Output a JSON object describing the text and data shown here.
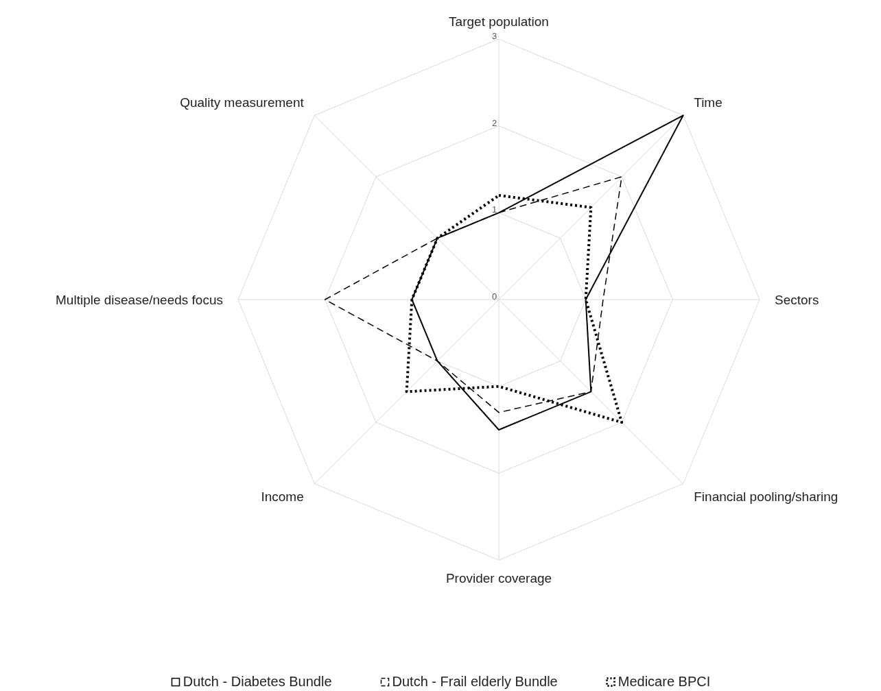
{
  "chart_data": {
    "type": "radar",
    "categories": [
      "Target population",
      "Time",
      "Sectors",
      "Financial pooling/sharing",
      "Provider coverage",
      "Income",
      "Multiple disease/needs focus",
      "Quality measurement"
    ],
    "series": [
      {
        "name": "Dutch - Diabetes Bundle",
        "color": "#000000",
        "line_style": "solid",
        "values": [
          1,
          3,
          1,
          1.5,
          1.5,
          1,
          1,
          1
        ]
      },
      {
        "name": "Dutch - Frail elderly Bundle",
        "color": "#000000",
        "line_style": "dashed",
        "values": [
          1,
          2,
          1.2,
          1.5,
          1.3,
          1,
          2,
          1
        ]
      },
      {
        "name": "Medicare BPCI",
        "color": "#000000",
        "line_style": "dotted",
        "values": [
          1.2,
          1.5,
          1,
          2,
          1,
          1.5,
          1,
          1
        ]
      }
    ],
    "ylim": [
      0,
      3
    ],
    "yticks": [
      0,
      1,
      2,
      3
    ],
    "grid": true,
    "legend": "bottom",
    "marker": "none"
  }
}
